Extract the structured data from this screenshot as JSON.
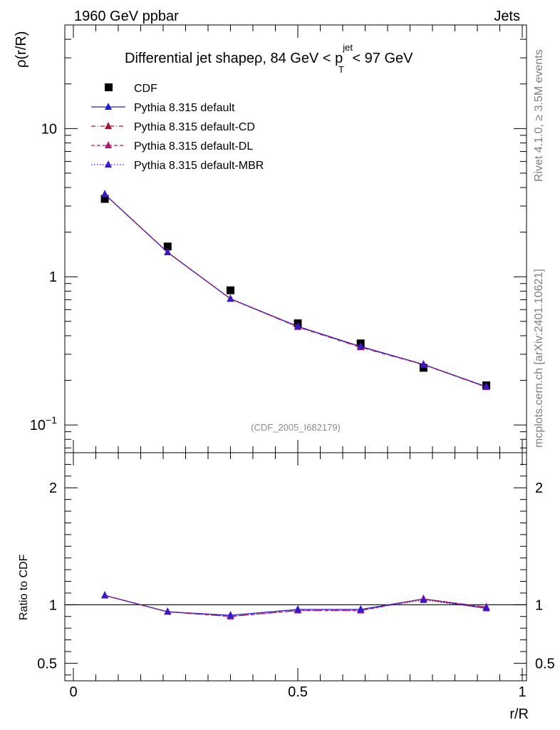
{
  "header": {
    "left": "1960 GeV ppbar",
    "right": "Jets"
  },
  "side_labels": {
    "rivet": "Rivet 4.1.0, ≥ 3.5M events",
    "source": "mcplots.cern.ch [arXiv:2401.10621]"
  },
  "analysis_tag": "(CDF_2005_I682179)",
  "chart_data": [
    {
      "type": "scatter",
      "panel": "main",
      "title": "Differential jet shapeρ, 84 GeV < p_T^jet < 97 GeV",
      "title_parts": {
        "main": "Differential jet shapeρ, 84 GeV < p",
        "sup": "jet",
        "sub": "T",
        "tail": " < 97 GeV"
      },
      "xlabel": "r/R",
      "ylabel": "ρ(r/R)",
      "yscale": "log",
      "xlim": [
        0,
        1
      ],
      "ylim": [
        0.065,
        50
      ],
      "x": [
        0.07,
        0.21,
        0.35,
        0.5,
        0.64,
        0.78,
        0.92
      ],
      "y_ticks": [
        {
          "value": 0.1,
          "label": "10",
          "exp": "−1"
        },
        {
          "value": 1,
          "label": "1",
          "exp": ""
        },
        {
          "value": 10,
          "label": "10",
          "exp": ""
        }
      ],
      "series": [
        {
          "name": "CDF",
          "style": "data",
          "color": "#000000",
          "values": [
            3.35,
            1.6,
            0.81,
            0.485,
            0.355,
            0.243,
            0.185
          ]
        },
        {
          "name": "Pythia 8.315 default",
          "style": "solid",
          "color": "#1f1fcf",
          "values": [
            3.6,
            1.46,
            0.71,
            0.462,
            0.338,
            0.256,
            0.181
          ]
        },
        {
          "name": "Pythia 8.315 default-CD",
          "style": "dashdot",
          "color": "#a01830",
          "values": [
            3.6,
            1.46,
            0.71,
            0.458,
            0.334,
            0.255,
            0.18
          ]
        },
        {
          "name": "Pythia 8.315 default-DL",
          "style": "dashed",
          "color": "#b0186a",
          "values": [
            3.6,
            1.46,
            0.709,
            0.46,
            0.336,
            0.256,
            0.18
          ]
        },
        {
          "name": "Pythia 8.315 default-MBR",
          "style": "dotted",
          "color": "#3a18c8",
          "values": [
            3.6,
            1.46,
            0.71,
            0.462,
            0.338,
            0.256,
            0.181
          ]
        }
      ]
    },
    {
      "type": "line",
      "panel": "ratio",
      "xlabel": "r/R",
      "ylabel": "Ratio to CDF",
      "xlim": [
        0,
        1
      ],
      "ylim": [
        0.35,
        2.3
      ],
      "x": [
        0.07,
        0.21,
        0.35,
        0.5,
        0.64,
        0.78,
        0.92
      ],
      "x_ticks": [
        {
          "value": 0,
          "label": "0"
        },
        {
          "value": 0.5,
          "label": "0.5"
        },
        {
          "value": 1,
          "label": "1"
        }
      ],
      "y_ticks": [
        {
          "value": 0.5,
          "label": "0.5"
        },
        {
          "value": 1,
          "label": "1"
        },
        {
          "value": 2,
          "label": "2"
        }
      ],
      "reference": 1,
      "series": [
        {
          "name": "Pythia 8.315 default",
          "style": "solid",
          "color": "#1f1fcf",
          "values": [
            1.08,
            0.94,
            0.91,
            0.96,
            0.96,
            1.05,
            0.97
          ]
        },
        {
          "name": "Pythia 8.315 default-CD",
          "style": "dashdot",
          "color": "#a01830",
          "values": [
            1.08,
            0.94,
            0.9,
            0.95,
            0.95,
            1.05,
            0.98
          ]
        },
        {
          "name": "Pythia 8.315 default-DL",
          "style": "dashed",
          "color": "#b0186a",
          "values": [
            1.08,
            0.94,
            0.9,
            0.95,
            0.95,
            1.05,
            0.98
          ]
        },
        {
          "name": "Pythia 8.315 default-MBR",
          "style": "dotted",
          "color": "#3a18c8",
          "values": [
            1.08,
            0.94,
            0.91,
            0.96,
            0.96,
            1.04,
            0.97
          ]
        }
      ]
    }
  ]
}
